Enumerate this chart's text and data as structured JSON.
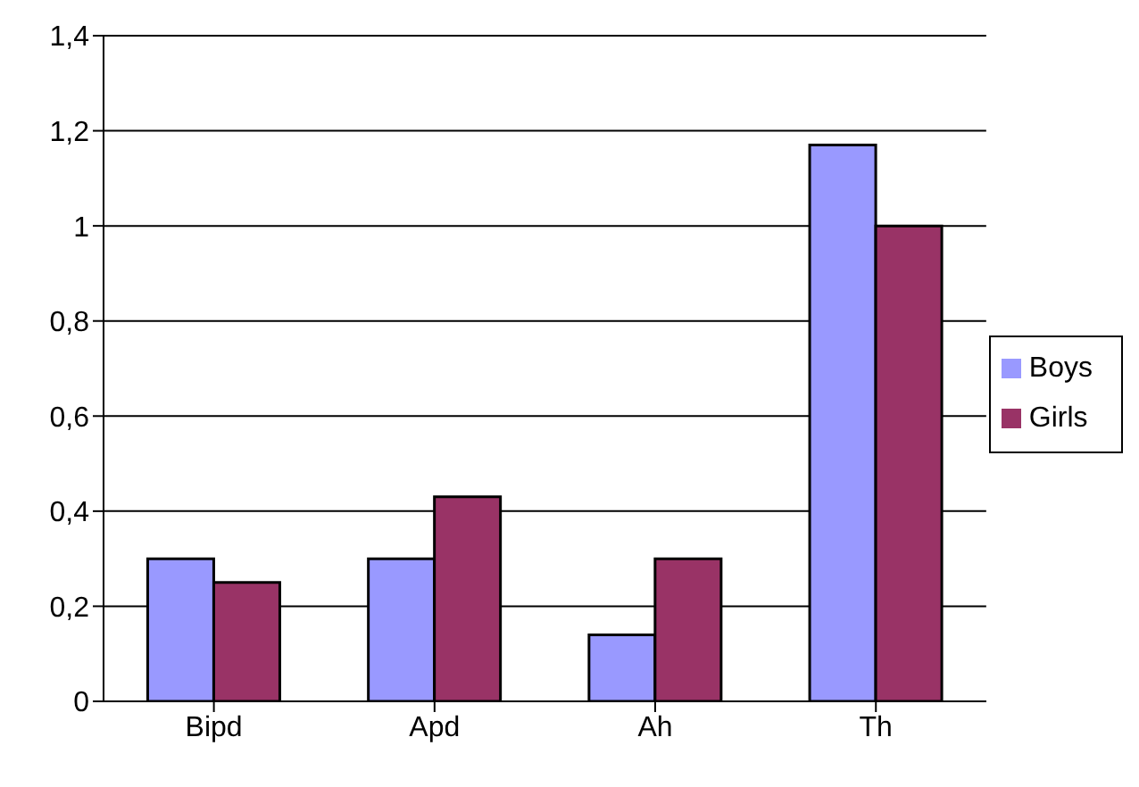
{
  "chart_data": {
    "type": "bar",
    "categories": [
      "Bipd",
      "Apd",
      "Ah",
      "Th"
    ],
    "series": [
      {
        "name": "Boys",
        "color": "#9999ff",
        "values": [
          0.3,
          0.3,
          0.14,
          1.17
        ]
      },
      {
        "name": "Girls",
        "color": "#993366",
        "values": [
          0.25,
          0.43,
          0.3,
          1.0
        ]
      }
    ],
    "ylim": [
      0,
      1.4
    ],
    "yticks": [
      0,
      {
        "value": 0.2,
        "label": "0,2"
      },
      {
        "value": 0.4,
        "label": "0,4"
      },
      {
        "value": 0.6,
        "label": "0,6"
      },
      {
        "value": 0.8,
        "label": "0,8"
      },
      1,
      {
        "value": 1.2,
        "label": "1,2"
      },
      {
        "value": 1.4,
        "label": "1,4"
      }
    ],
    "grid": "y",
    "legend": "right"
  }
}
